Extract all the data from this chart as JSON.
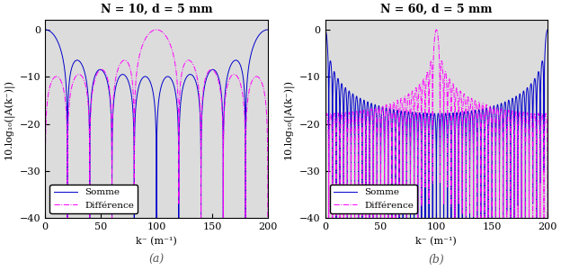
{
  "N1": 10,
  "N2": 60,
  "d": 0.005,
  "k_min": 0.0,
  "k_max": 200.0,
  "k_points": 20000,
  "ylim": [
    -40,
    2
  ],
  "yticks": [
    0,
    -10,
    -20,
    -30,
    -40
  ],
  "xlim": [
    0,
    200
  ],
  "xticks": [
    0,
    50,
    100,
    150,
    200
  ],
  "ylabel": "10.log₁₀(|A(k⁻)|)",
  "xlabel": "k⁻ (m⁻¹)",
  "title1": "N = 10, d = 5 mm",
  "title2": "N = 60, d = 5 mm",
  "label_a": "(a)",
  "label_b": "(b)",
  "color_somme": "#0000CC",
  "color_diff": "#FF00FF",
  "legend_somme": "Somme",
  "legend_diff": "Différence",
  "background_color": "#DCDCDC",
  "linewidth": 0.7,
  "title_fontsize": 9,
  "label_fontsize": 8,
  "tick_fontsize": 8,
  "legend_fontsize": 7.5
}
